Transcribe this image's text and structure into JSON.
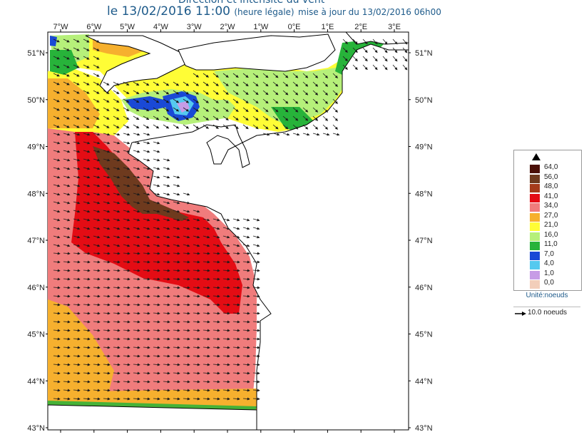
{
  "header": {
    "title_partial": "Direction et intensité du vent",
    "valid_prefix": "le 13/02/2016 11:00",
    "valid_note": "(heure légale)",
    "update": "mise à jour du 13/02/2016 06h00"
  },
  "map": {
    "top_labels": [
      "7°W",
      "6°W",
      "5°W",
      "4°W",
      "3°W",
      "2°W",
      "1°W",
      "0°E",
      "1°E",
      "2°E",
      "3°E"
    ],
    "left_labels": [
      "51°N",
      "50°N",
      "49°N",
      "48°N",
      "47°N",
      "46°N",
      "45°N",
      "44°N",
      "43°N"
    ],
    "right_labels": [
      "51°N",
      "50°N",
      "49°N",
      "48°N",
      "47°N",
      "46°N",
      "45°N",
      "44°N",
      "43°N"
    ],
    "lon_range": [
      -7,
      3
    ],
    "lat_range": [
      43,
      51
    ]
  },
  "legend": {
    "title": "Unité:noeuds",
    "arrow_label": "10.0 noeuds",
    "classes": [
      {
        "label": "64,0",
        "color": "#4a0f07"
      },
      {
        "label": "56,0",
        "color": "#6e3a1e"
      },
      {
        "label": "48,0",
        "color": "#a53b1a"
      },
      {
        "label": "41,0",
        "color": "#e40c14"
      },
      {
        "label": "34,0",
        "color": "#f07c7c"
      },
      {
        "label": "27,0",
        "color": "#f6b02e"
      },
      {
        "label": "21,0",
        "color": "#fffd36"
      },
      {
        "label": "16,0",
        "color": "#b6f07a"
      },
      {
        "label": "11,0",
        "color": "#27b33a"
      },
      {
        "label": "7,0",
        "color": "#1a49d6"
      },
      {
        "label": "4,0",
        "color": "#55c9ef"
      },
      {
        "label": "1,0",
        "color": "#c79ce6"
      },
      {
        "label": "0,0",
        "color": "#f2ceba"
      }
    ]
  },
  "colors": {
    "accent": "#1d5a8a",
    "land": "#ffffff",
    "coast": "#000000",
    "arrow": "#1a1a1a"
  }
}
